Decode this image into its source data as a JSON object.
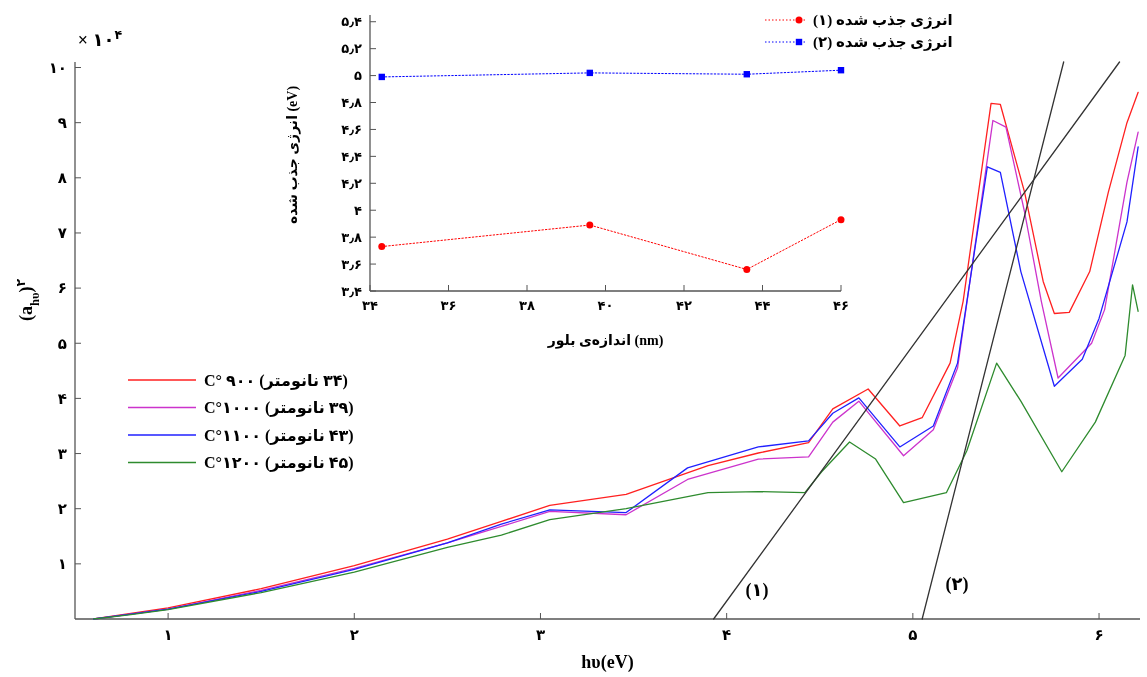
{
  "chart_data": [
    {
      "type": "line",
      "xlabel": "hυ(eV)",
      "ylabel": "(a$_{hυ}$)$^{۲}$",
      "annotations": [
        "× ۱۰$^{۴}$",
        "(۱)",
        "(۲)"
      ],
      "xlim": [
        0.5,
        6.22
      ],
      "ylim": [
        0,
        10.1
      ],
      "xticks": [
        {
          "value": 1,
          "label": "۱"
        },
        {
          "value": 2,
          "label": "۲"
        },
        {
          "value": 3,
          "label": "۳"
        },
        {
          "value": 4,
          "label": "۴"
        },
        {
          "value": 5,
          "label": "۵"
        },
        {
          "value": 6,
          "label": "۶"
        }
      ],
      "yticks": [
        {
          "value": 1,
          "label": "۱"
        },
        {
          "value": 2,
          "label": "۲"
        },
        {
          "value": 3,
          "label": "۳"
        },
        {
          "value": 4,
          "label": "۴"
        },
        {
          "value": 5,
          "label": "۵"
        },
        {
          "value": 6,
          "label": "۶"
        },
        {
          "value": 7,
          "label": "۷"
        },
        {
          "value": 8,
          "label": "۸"
        },
        {
          "value": 9,
          "label": "۹"
        },
        {
          "value": 10,
          "label": "۱۰"
        }
      ],
      "grid": false,
      "legend": "left",
      "marker": "none",
      "line_style": "solid",
      "series": [
        {
          "name": "(۳۴ نانومتر) ۹۰۰ °C",
          "color": "#ff2020",
          "x": [
            0.6,
            0.8,
            1.0,
            1.5,
            2.0,
            2.5,
            2.79,
            3.05,
            3.46,
            3.9,
            4.17,
            4.44,
            4.57,
            4.76,
            4.93,
            5.05,
            5.2,
            5.27,
            5.42,
            5.47,
            5.6,
            5.7,
            5.76,
            5.84,
            5.95,
            6.05,
            6.15,
            6.21
          ],
          "values": [
            0,
            0.1,
            0.2,
            0.55,
            0.97,
            1.45,
            1.77,
            2.06,
            2.26,
            2.78,
            3.01,
            3.2,
            3.81,
            4.17,
            3.5,
            3.65,
            4.64,
            5.76,
            9.35,
            9.33,
            7.74,
            6.12,
            5.54,
            5.56,
            6.3,
            7.74,
            9.0,
            9.55
          ]
        },
        {
          "name": "(۳۹ نانومتر) ۱۰۰۰°C",
          "color": "#cc33cc",
          "x": [
            0.6,
            0.8,
            1.0,
            1.5,
            2.0,
            2.5,
            2.79,
            3.05,
            3.46,
            3.79,
            4.17,
            4.44,
            4.57,
            4.71,
            4.95,
            5.11,
            5.24,
            5.43,
            5.5,
            5.6,
            5.69,
            5.78,
            5.96,
            6.03,
            6.15,
            6.21
          ],
          "values": [
            0,
            0.09,
            0.18,
            0.52,
            0.92,
            1.38,
            1.68,
            1.95,
            1.89,
            2.53,
            2.9,
            2.94,
            3.57,
            3.95,
            2.96,
            3.43,
            4.55,
            9.04,
            8.92,
            7.38,
            5.76,
            4.37,
            5.0,
            5.61,
            7.92,
            8.83
          ]
        },
        {
          "name": "(۴۳ نانومتر) ۱۱۰۰°C",
          "color": "#2020ff",
          "x": [
            0.6,
            0.8,
            1.0,
            1.5,
            2.0,
            2.5,
            2.79,
            3.05,
            3.46,
            3.79,
            4.17,
            4.44,
            4.57,
            4.71,
            4.93,
            5.11,
            5.24,
            5.4,
            5.47,
            5.58,
            5.76,
            5.91,
            6.0,
            6.15,
            6.21
          ],
          "values": [
            0,
            0.09,
            0.18,
            0.5,
            0.9,
            1.38,
            1.72,
            1.98,
            1.93,
            2.74,
            3.12,
            3.23,
            3.73,
            4.01,
            3.12,
            3.5,
            4.64,
            8.2,
            8.1,
            6.3,
            4.22,
            4.71,
            5.45,
            7.2,
            8.56
          ]
        },
        {
          "name": "(۴۵ نانومتر) ۱۲۰۰°C",
          "color": "#2e8b2e",
          "x": [
            0.6,
            0.8,
            1.0,
            1.5,
            2.0,
            2.5,
            2.79,
            3.05,
            3.46,
            3.9,
            4.17,
            4.42,
            4.51,
            4.66,
            4.8,
            4.95,
            5.18,
            5.29,
            5.45,
            5.58,
            5.8,
            5.98,
            6.14,
            6.18,
            6.21
          ],
          "values": [
            0,
            0.08,
            0.17,
            0.48,
            0.85,
            1.3,
            1.52,
            1.8,
            2.0,
            2.29,
            2.31,
            2.29,
            2.67,
            3.21,
            2.9,
            2.11,
            2.29,
            3.05,
            4.64,
            3.95,
            2.67,
            3.57,
            4.78,
            6.06,
            5.58
          ]
        },
        {
          "color": "#333333",
          "x": [
            3.93,
            6.11
          ],
          "values": [
            0,
            10.1
          ]
        },
        {
          "color": "#333333",
          "x": [
            5.05,
            5.81
          ],
          "values": [
            0,
            10.1
          ]
        }
      ]
    },
    {
      "type": "line",
      "xlabel": "اندازه‌ی بلور (nm)",
      "ylabel": "انرژی جذب شده (eV)",
      "xlim": [
        34,
        46
      ],
      "ylim": [
        3.4,
        5.45
      ],
      "xticks": [
        {
          "value": 34,
          "label": "۳۴"
        },
        {
          "value": 36,
          "label": "۳۶"
        },
        {
          "value": 38,
          "label": "۳۸"
        },
        {
          "value": 40,
          "label": "۴۰"
        },
        {
          "value": 42,
          "label": "۴۲"
        },
        {
          "value": 44,
          "label": "۴۴"
        },
        {
          "value": 46,
          "label": "۴۶"
        }
      ],
      "yticks": [
        {
          "value": 3.4,
          "label": "۳٫۴"
        },
        {
          "value": 3.6,
          "label": "۳٫۶"
        },
        {
          "value": 3.8,
          "label": "۳٫۸"
        },
        {
          "value": 4,
          "label": "۴"
        },
        {
          "value": 4.2,
          "label": "۴٫۲"
        },
        {
          "value": 4.4,
          "label": "۴٫۴"
        },
        {
          "value": 4.6,
          "label": "۴٫۶"
        },
        {
          "value": 4.8,
          "label": "۴٫۸"
        },
        {
          "value": 5,
          "label": "۵"
        },
        {
          "value": 5.2,
          "label": "۵٫۲"
        },
        {
          "value": 5.4,
          "label": "۵٫۴"
        }
      ],
      "grid": false,
      "legend": "top right",
      "line_style": "dotted",
      "series": [
        {
          "name": "انرژی جذب شده (۱)",
          "color": "#ff0000",
          "marker": "circle",
          "x": [
            34.3,
            39.6,
            43.6,
            46.0
          ],
          "values": [
            3.73,
            3.89,
            3.56,
            3.93
          ]
        },
        {
          "name": "انرژی جذب شده (۲)",
          "color": "#0000ff",
          "marker": "square",
          "x": [
            34.3,
            39.6,
            43.6,
            46.0
          ],
          "values": [
            4.99,
            5.02,
            5.01,
            5.04
          ]
        }
      ]
    }
  ]
}
